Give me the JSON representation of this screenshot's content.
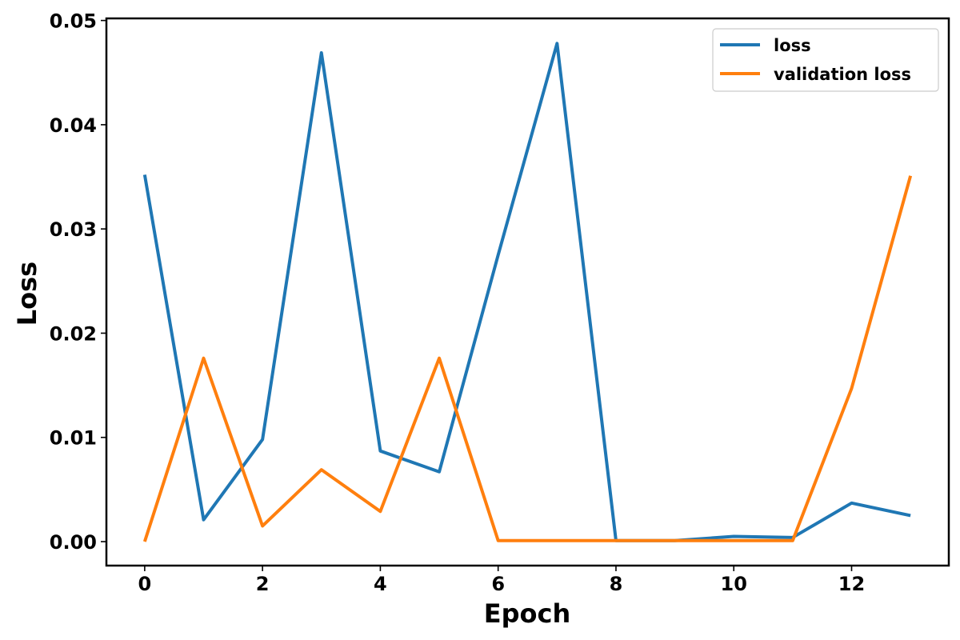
{
  "chart_data": {
    "type": "line",
    "title": "",
    "xlabel": "Epoch",
    "ylabel": "Loss",
    "xlim": [
      -0.65,
      13.65
    ],
    "ylim": [
      -0.0023,
      0.0502
    ],
    "xticks": [
      0,
      2,
      4,
      6,
      8,
      10,
      12
    ],
    "xtick_labels": [
      "0",
      "2",
      "4",
      "6",
      "8",
      "10",
      "12"
    ],
    "yticks": [
      0.0,
      0.01,
      0.02,
      0.03,
      0.04,
      0.05
    ],
    "ytick_labels": [
      "0.00",
      "0.01",
      "0.02",
      "0.03",
      "0.04",
      "0.05"
    ],
    "grid": false,
    "legend_position": "top-right",
    "x": [
      0,
      1,
      2,
      3,
      4,
      5,
      6,
      7,
      8,
      9,
      10,
      11,
      12,
      13
    ],
    "series": [
      {
        "name": "loss",
        "color": "#1f77b4",
        "values": [
          0.0352,
          0.0021,
          0.0098,
          0.0469,
          0.0087,
          0.0067,
          0.0275,
          0.0478,
          0.0001,
          0.0001,
          0.0005,
          0.0004,
          0.0037,
          0.0025
        ]
      },
      {
        "name": "validation loss",
        "color": "#ff7f0e",
        "values": [
          0.0,
          0.0176,
          0.0015,
          0.0069,
          0.0029,
          0.0176,
          0.0001,
          0.0001,
          0.0001,
          0.0001,
          0.0001,
          0.0001,
          0.0147,
          0.0351
        ]
      }
    ]
  }
}
